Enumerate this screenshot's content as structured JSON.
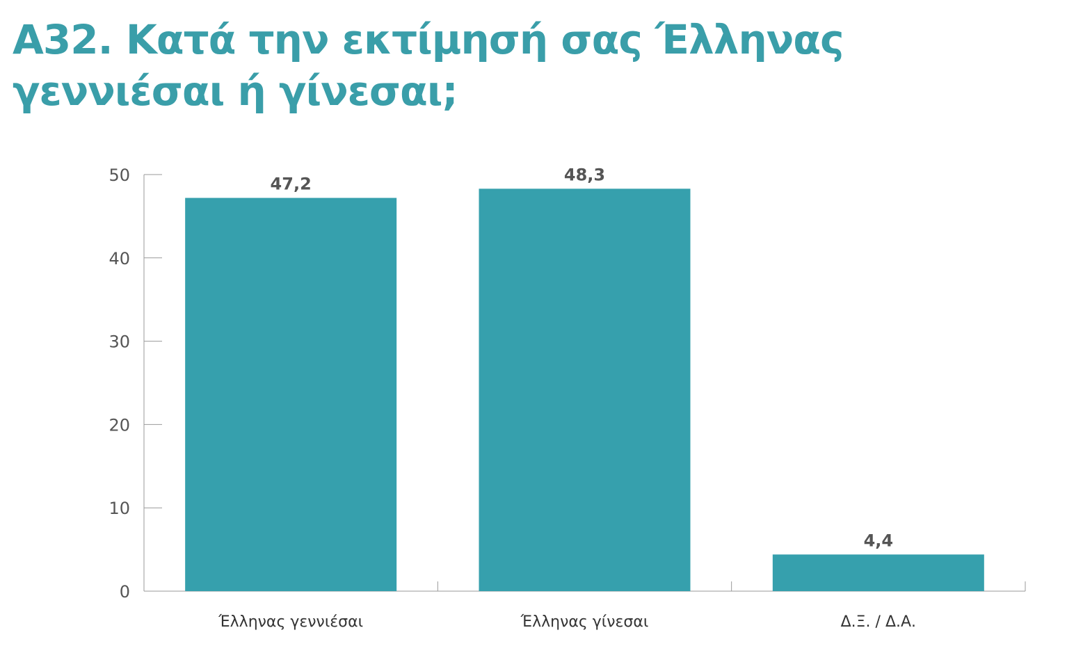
{
  "chart_data": {
    "type": "bar",
    "title": "A32. Κατά την εκτίμησή σας Έλληνας γεννιέσαι ή γίνεσαι;",
    "categories": [
      "Έλληνας γεννιέσαι",
      "Έλληνας γίνεσαι",
      "Δ.Ξ. / Δ.Α."
    ],
    "values": [
      47.2,
      48.3,
      4.4
    ],
    "data_labels": [
      "47,2",
      "48,3",
      "4,4"
    ],
    "ylim": [
      0,
      50
    ],
    "yticks": [
      0,
      10,
      20,
      30,
      40,
      50
    ],
    "xlabel": "",
    "ylabel": "",
    "grid": false,
    "legend": "none",
    "bar_color": "#36a0ad",
    "axis_color": "#999999",
    "title_color": "#3a9ea9"
  }
}
